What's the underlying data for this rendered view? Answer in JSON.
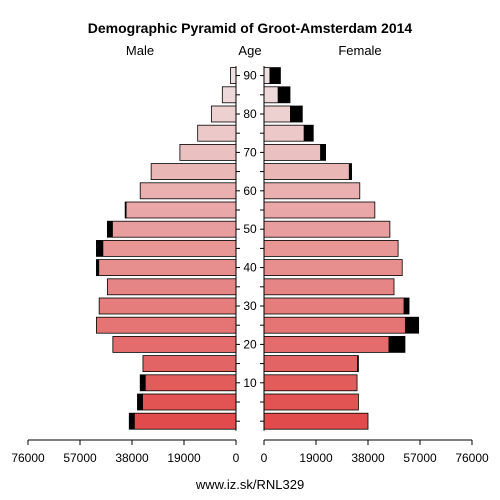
{
  "chart_data": {
    "type": "bar",
    "title": "Demographic Pyramid of Groot-Amsterdam 2014",
    "male_label": "Male",
    "female_label": "Female",
    "age_label": "Age",
    "footer": "www.iz.sk/RNL329",
    "x_max": 76000,
    "x_ticks": [
      0,
      19000,
      38000,
      57000,
      76000
    ],
    "age_ticks": [
      10,
      20,
      30,
      40,
      50,
      60,
      70,
      80,
      90
    ],
    "age_groups": [
      "0-4",
      "5-9",
      "10-14",
      "15-19",
      "20-24",
      "25-29",
      "30-34",
      "35-39",
      "40-44",
      "45-49",
      "50-54",
      "55-59",
      "60-64",
      "65-69",
      "70-74",
      "75-79",
      "80-84",
      "85-89",
      "90-94"
    ],
    "series": [
      {
        "name": "Male",
        "total": [
          39000,
          36000,
          35000,
          34000,
          45000,
          51000,
          50000,
          47000,
          51000,
          51000,
          47000,
          40500,
          35000,
          31000,
          20500,
          14000,
          9000,
          5000,
          2000
        ],
        "foreign": [
          2000,
          2000,
          2000,
          0,
          0,
          0,
          0,
          0,
          1000,
          2500,
          2000,
          500,
          0,
          0,
          0,
          0,
          0,
          0,
          0
        ]
      },
      {
        "name": "Female",
        "total": [
          38000,
          34500,
          34000,
          34500,
          51500,
          56500,
          53000,
          47500,
          50500,
          49000,
          46000,
          40500,
          35000,
          32000,
          22500,
          18000,
          14000,
          9500,
          6000
        ],
        "foreign": [
          0,
          0,
          0,
          500,
          6000,
          5000,
          2000,
          0,
          0,
          0,
          0,
          0,
          0,
          1000,
          2000,
          3500,
          4500,
          4500,
          4000
        ]
      }
    ],
    "colors": {
      "foreign": "#000000",
      "stroke": "#000000",
      "grad_young": [
        225,
        75,
        75
      ],
      "grad_old": [
        238,
        225,
        225
      ]
    }
  }
}
